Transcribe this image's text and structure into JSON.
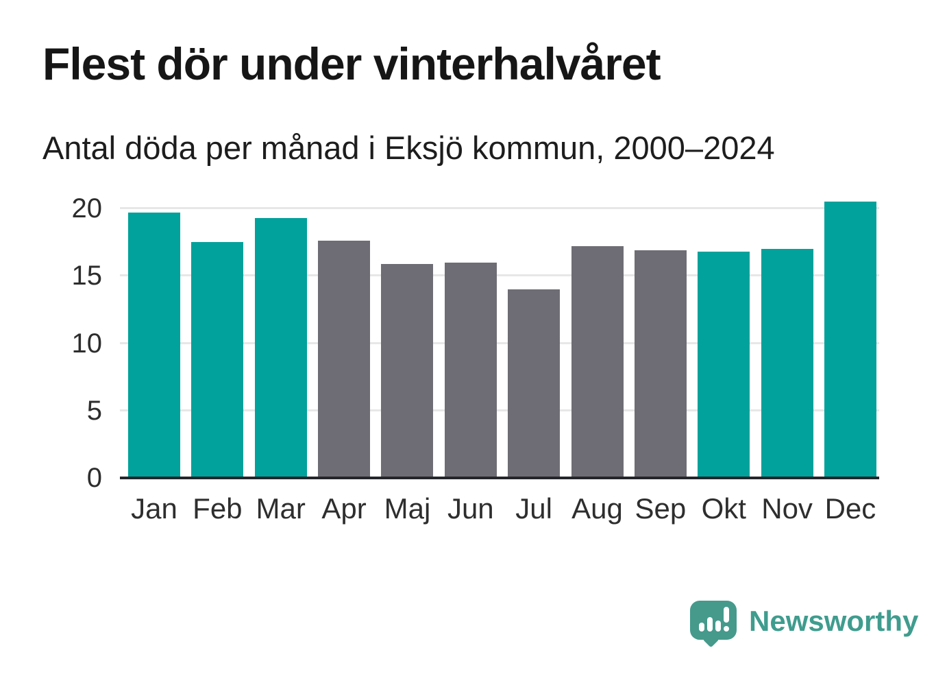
{
  "header": {
    "title": "Flest dör under vinterhalvåret",
    "subtitle": "Antal döda per månad i Eksjö kommun, 2000–2024"
  },
  "chart_data": {
    "type": "bar",
    "categories": [
      "Jan",
      "Feb",
      "Mar",
      "Apr",
      "Maj",
      "Jun",
      "Jul",
      "Aug",
      "Sep",
      "Okt",
      "Nov",
      "Dec"
    ],
    "values": [
      19.7,
      17.5,
      19.3,
      17.6,
      15.9,
      16.0,
      14.0,
      17.2,
      16.9,
      16.8,
      17.0,
      20.5
    ],
    "highlighted": [
      true,
      true,
      true,
      false,
      false,
      false,
      false,
      false,
      false,
      true,
      true,
      true
    ],
    "title": "Flest dör under vinterhalvåret",
    "subtitle": "Antal döda per månad i Eksjö kommun, 2000–2024",
    "xlabel": "",
    "ylabel": "",
    "yticks": [
      0,
      5,
      10,
      15,
      20
    ],
    "ylim": [
      0,
      21
    ],
    "grid": true,
    "legend": false,
    "colors": {
      "highlight_bar": "#00a29b",
      "base_bar": "#6e6d75",
      "gridline": "#e7e7e7",
      "axis_line": "#24262a"
    }
  },
  "footer": {
    "brand": "Newsworthy",
    "brand_color": "#3f9c8e",
    "logo_icon": "speech-bubble-bar-chart-icon"
  }
}
